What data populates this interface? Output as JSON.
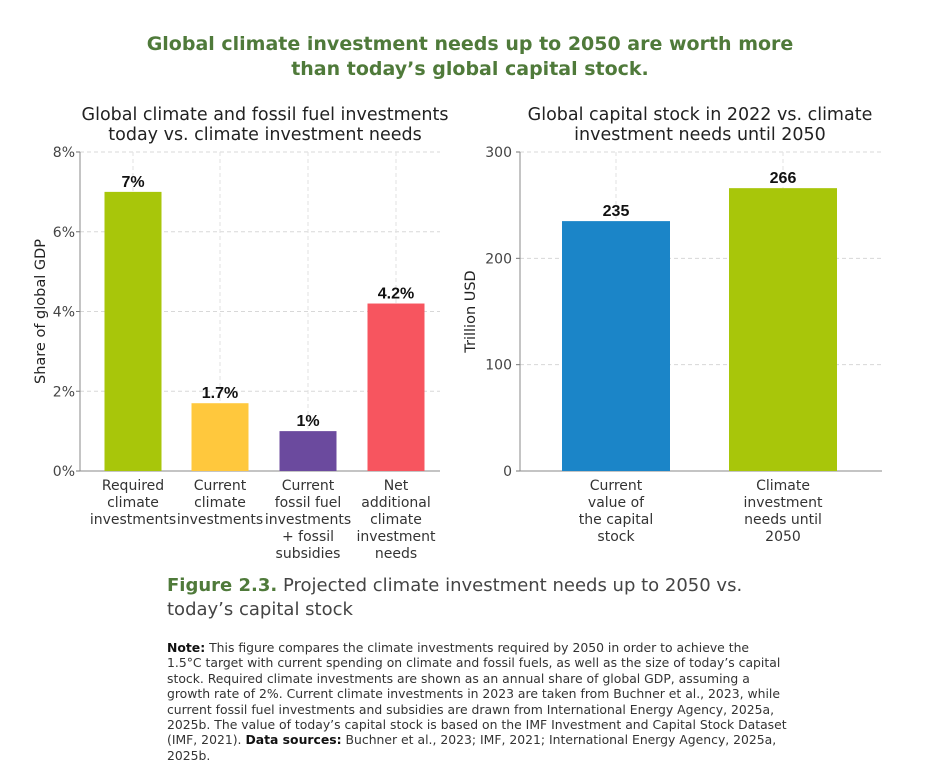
{
  "heading": {
    "line1": "Global climate investment needs up to 2050 are worth more",
    "line2": "than today’s global capital stock."
  },
  "chart_data": [
    {
      "type": "bar",
      "title": [
        "Global climate and fossil fuel investments",
        "today vs. climate investment needs"
      ],
      "ylabel": "Share of global GDP",
      "ylim": [
        0,
        8
      ],
      "yticks": [
        0,
        2,
        4,
        6,
        8
      ],
      "ytick_labels": [
        "0%",
        "2%",
        "4%",
        "6%",
        "8%"
      ],
      "categories": [
        [
          "Required",
          "climate",
          "investments"
        ],
        [
          "Current",
          "climate",
          "investments"
        ],
        [
          "Current",
          "fossil fuel",
          "investments",
          "+ fossil",
          "subsidies"
        ],
        [
          "Net",
          "additional",
          "climate",
          "investment",
          "needs"
        ]
      ],
      "values": [
        7,
        1.7,
        1,
        4.2
      ],
      "value_labels": [
        "7%",
        "1.7%",
        "1%",
        "4.2%"
      ],
      "colors": [
        "#a8c60a",
        "#ffc83d",
        "#6b4a9e",
        "#f7555f"
      ],
      "grid": true
    },
    {
      "type": "bar",
      "title": [
        "Global capital stock in 2022 vs. climate",
        "investment needs until 2050"
      ],
      "ylabel": "Trillion USD",
      "ylim": [
        0,
        300
      ],
      "yticks": [
        0,
        100,
        200,
        300
      ],
      "ytick_labels": [
        "0",
        "100",
        "200",
        "300"
      ],
      "categories": [
        [
          "Current",
          "value of",
          "the capital",
          "stock"
        ],
        [
          "Climate",
          "investment",
          "needs until",
          "2050"
        ]
      ],
      "values": [
        235,
        266
      ],
      "value_labels": [
        "235",
        "266"
      ],
      "colors": [
        "#1b85c8",
        "#a8c60a"
      ],
      "grid": true
    }
  ],
  "caption": {
    "label": "Figure 2.3.",
    "text": " Projected climate investment needs up to 2050 vs. today’s capital stock"
  },
  "note": {
    "label": "Note:",
    "text": " This figure compares the climate investments required by 2050 in order to achieve the 1.5°C target with current spending on climate and fossil fuels, as well as the size of today’s capital stock. Required climate investments are shown as an annual share of global GDP, assuming a growth rate of 2%. Current climate investments in 2023 are taken from Buchner et al., 2023, while current fossil fuel investments and subsidies are drawn from International Energy Agency, 2025a, 2025b. The value of today’s capital stock is based on the IMF Investment and Capital Stock Dataset (IMF, 2021). ",
    "sources_label": "Data sources:",
    "sources_text": " Buchner et al., 2023; IMF, 2021; International Energy Agency, 2025a, 2025b."
  }
}
